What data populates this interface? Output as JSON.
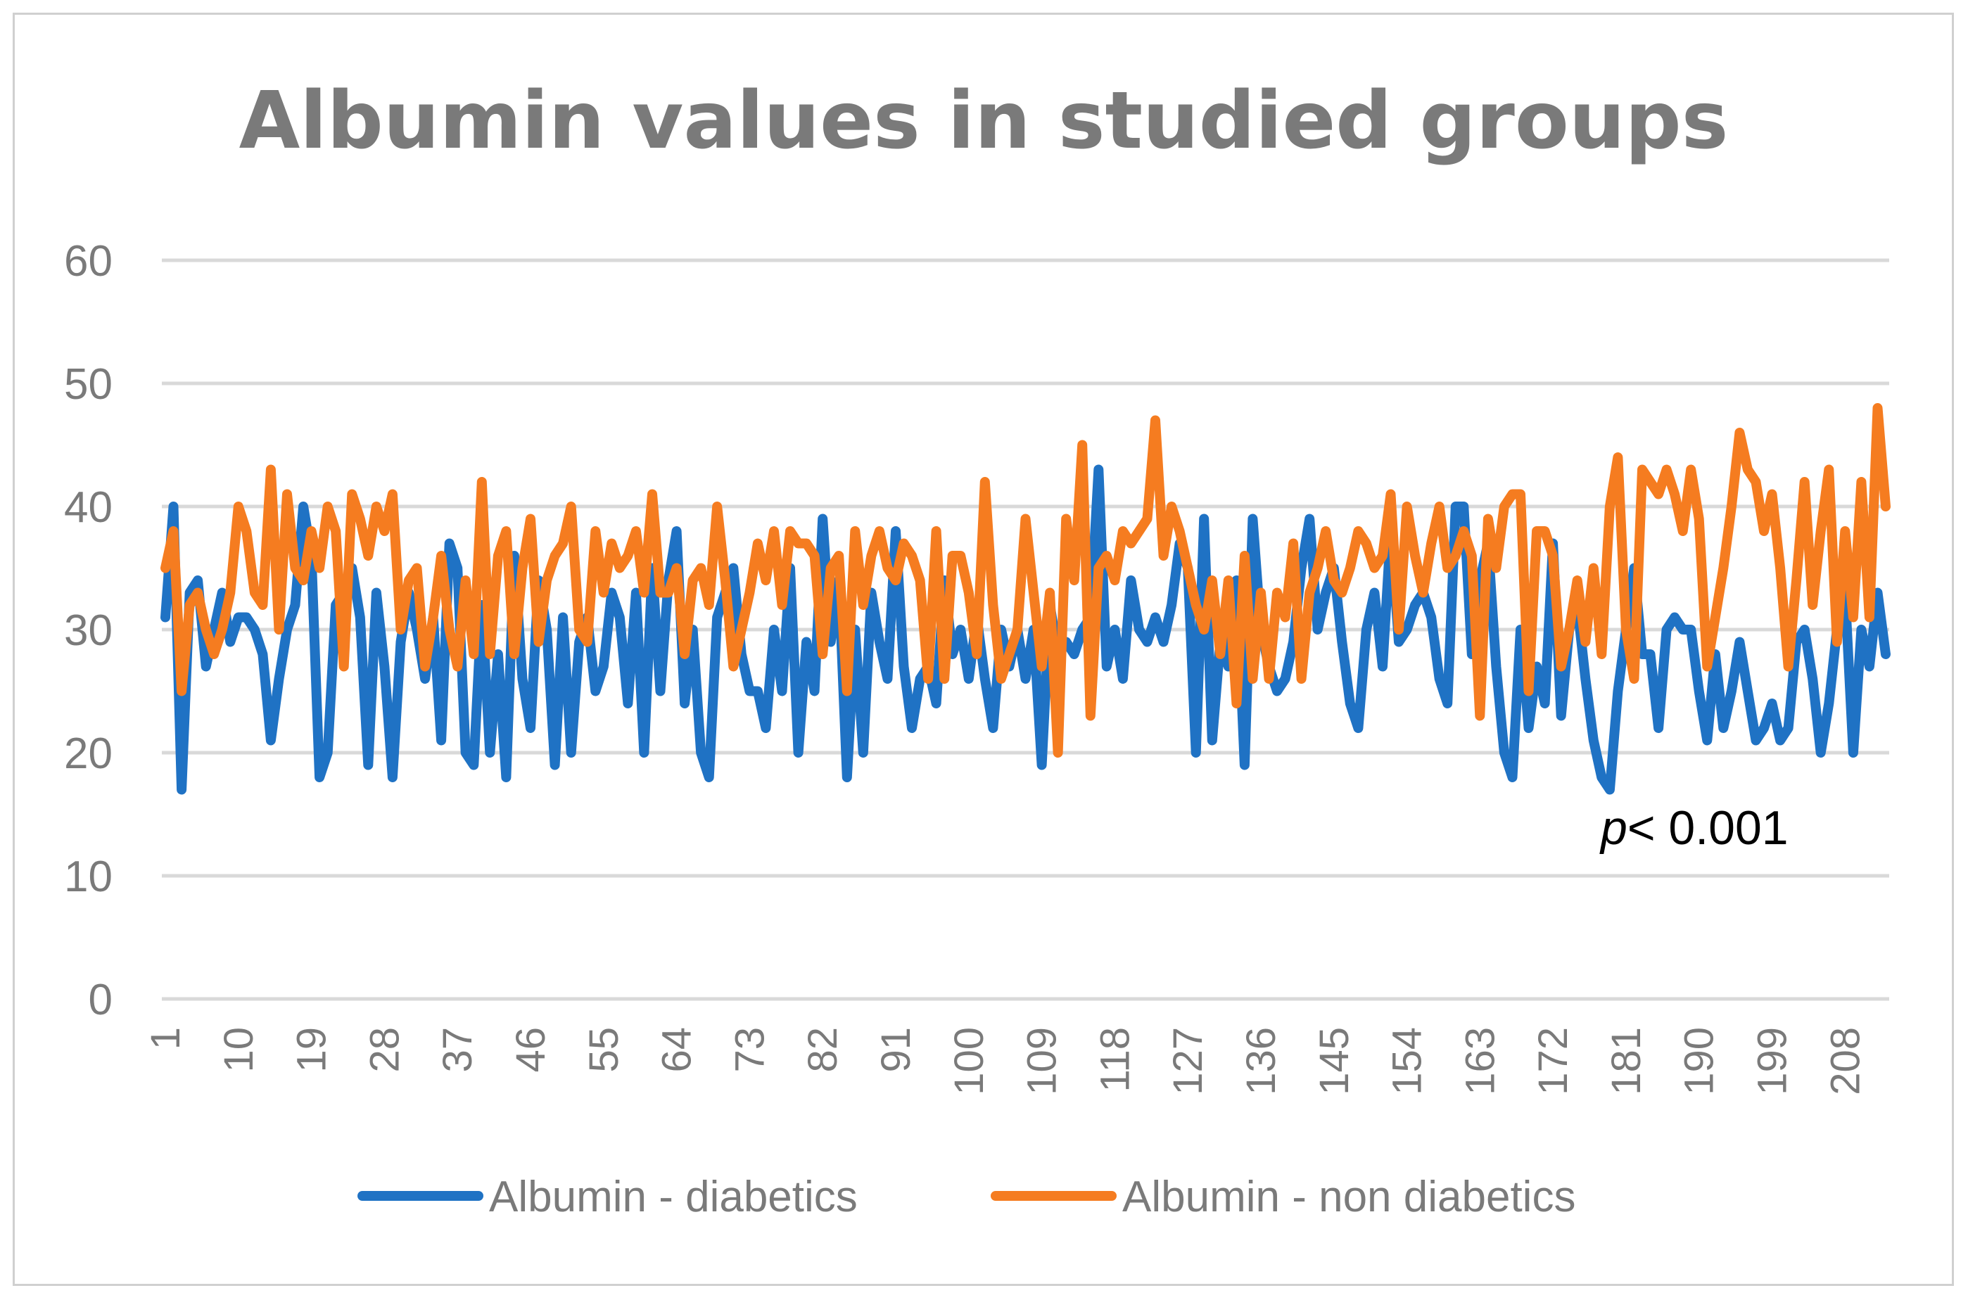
{
  "chart_data": {
    "type": "line",
    "title": "Albumin values in studied groups",
    "xlabel": "",
    "ylabel": "",
    "ylim": [
      0,
      60
    ],
    "yticks": [
      0,
      10,
      20,
      30,
      40,
      50,
      60
    ],
    "x": [
      1,
      2,
      3,
      4,
      5,
      6,
      7,
      8,
      9,
      10,
      11,
      12,
      13,
      14,
      15,
      16,
      17,
      18,
      19,
      20,
      21,
      22,
      23,
      24,
      25,
      26,
      27,
      28,
      29,
      30,
      31,
      32,
      33,
      34,
      35,
      36,
      37,
      38,
      39,
      40,
      41,
      42,
      43,
      44,
      45,
      46,
      47,
      48,
      49,
      50,
      51,
      52,
      53,
      54,
      55,
      56,
      57,
      58,
      59,
      60,
      61,
      62,
      63,
      64,
      65,
      66,
      67,
      68,
      69,
      70,
      71,
      72,
      73,
      74,
      75,
      76,
      77,
      78,
      79,
      80,
      81,
      82,
      83,
      84,
      85,
      86,
      87,
      88,
      89,
      90,
      91,
      92,
      93,
      94,
      95,
      96,
      97,
      98,
      99,
      100,
      101,
      102,
      103,
      104,
      105,
      106,
      107,
      108,
      109,
      110,
      111,
      112,
      113,
      114,
      115,
      116,
      117,
      118,
      119,
      120,
      121,
      122,
      123,
      124,
      125,
      126,
      127,
      128,
      129,
      130,
      131,
      132,
      133,
      134,
      135,
      136,
      137,
      138,
      139,
      140,
      141,
      142,
      143,
      144,
      145,
      146,
      147,
      148,
      149,
      150,
      151,
      152,
      153,
      154,
      155,
      156,
      157,
      158,
      159,
      160,
      161,
      162,
      163,
      164,
      165,
      166,
      167,
      168,
      169,
      170,
      171,
      172,
      173,
      174,
      175,
      176,
      177,
      178,
      179,
      180,
      181,
      182,
      183,
      184,
      185,
      186,
      187,
      188,
      189,
      190,
      191,
      192,
      193,
      194,
      195,
      196,
      197,
      198,
      199,
      200,
      201,
      202,
      203,
      204,
      205,
      206,
      207,
      208,
      209,
      210,
      211,
      212,
      213
    ],
    "categories": [
      "1",
      "10",
      "19",
      "28",
      "37",
      "46",
      "55",
      "64",
      "73",
      "82",
      "91",
      "100",
      "109",
      "118",
      "127",
      "136",
      "145",
      "154",
      "163",
      "172",
      "181",
      "190",
      "199",
      "208"
    ],
    "series": [
      {
        "name": "Albumin - diabetics",
        "color": "#1f72c4",
        "values": [
          31,
          40,
          17,
          33,
          34,
          27,
          30,
          33,
          29,
          31,
          31,
          30,
          28,
          21,
          26,
          30,
          32,
          40,
          36,
          18,
          20,
          32,
          33,
          35,
          31,
          19,
          33,
          27,
          18,
          29,
          33,
          30,
          26,
          31,
          21,
          37,
          35,
          20,
          19,
          32,
          20,
          28,
          18,
          36,
          26,
          22,
          34,
          30,
          19,
          31,
          20,
          29,
          31,
          25,
          27,
          33,
          31,
          24,
          33,
          20,
          35,
          25,
          34,
          38,
          24,
          30,
          20,
          18,
          31,
          33,
          35,
          28,
          25,
          25,
          22,
          30,
          25,
          35,
          20,
          29,
          25,
          39,
          29,
          34,
          18,
          30,
          20,
          33,
          29,
          26,
          38,
          27,
          22,
          26,
          27,
          24,
          34,
          28,
          30,
          26,
          31,
          26,
          22,
          30,
          27,
          30,
          26,
          30,
          19,
          32,
          28,
          29,
          28,
          30,
          31,
          43,
          27,
          30,
          26,
          34,
          30,
          29,
          31,
          29,
          32,
          37,
          35,
          20,
          39,
          21,
          29,
          27,
          34,
          19,
          39,
          30,
          27,
          25,
          26,
          29,
          35,
          39,
          30,
          33,
          35,
          29,
          24,
          22,
          30,
          33,
          27,
          38,
          29,
          30,
          32,
          33,
          31,
          26,
          24,
          40,
          40,
          28,
          34,
          37,
          27,
          20,
          18,
          30,
          22,
          27,
          24,
          37,
          23,
          30,
          32,
          26,
          21,
          18,
          17,
          25,
          30,
          35,
          28,
          28,
          22,
          30,
          31,
          30,
          30,
          25,
          21,
          28,
          22,
          25,
          29,
          25,
          21,
          22,
          24,
          21,
          22,
          29,
          30,
          26,
          20,
          24,
          30,
          33,
          20,
          30,
          27,
          33,
          28
        ],
        "spread_note": "values approximate"
      },
      {
        "name": "Albumin - non diabetics",
        "color": "#f57c20",
        "values": [
          35,
          38,
          25,
          32,
          33,
          30,
          28,
          30,
          33,
          40,
          38,
          33,
          32,
          43,
          30,
          41,
          35,
          34,
          38,
          35,
          40,
          38,
          27,
          41,
          39,
          36,
          40,
          38,
          41,
          30,
          34,
          35,
          27,
          31,
          36,
          30,
          27,
          34,
          28,
          42,
          28,
          36,
          38,
          28,
          35,
          39,
          29,
          34,
          36,
          37,
          40,
          30,
          29,
          38,
          33,
          37,
          35,
          36,
          38,
          33,
          41,
          33,
          33,
          35,
          28,
          34,
          35,
          32,
          40,
          34,
          27,
          30,
          33,
          37,
          34,
          38,
          32,
          38,
          37,
          37,
          36,
          28,
          35,
          36,
          25,
          38,
          32,
          36,
          38,
          35,
          34,
          37,
          36,
          34,
          26,
          38,
          26,
          36,
          36,
          33,
          28,
          42,
          32,
          26,
          28,
          30,
          39,
          33,
          27,
          33,
          20,
          39,
          34,
          45,
          23,
          35,
          36,
          34,
          38,
          37,
          38,
          39,
          47,
          36,
          40,
          38,
          35,
          32,
          30,
          34,
          28,
          34,
          24,
          36,
          26,
          33,
          26,
          33,
          31,
          37,
          26,
          33,
          35,
          38,
          34,
          33,
          35,
          38,
          37,
          35,
          36,
          41,
          30,
          40,
          36,
          33,
          37,
          40,
          35,
          36,
          38,
          36,
          23,
          39,
          35,
          40,
          41,
          41,
          25,
          38,
          38,
          36,
          27,
          30,
          34,
          29,
          35,
          28,
          40,
          44,
          30,
          26,
          43,
          42,
          41,
          43,
          41,
          38,
          43,
          39,
          27,
          31,
          35,
          40,
          46,
          43,
          42,
          38,
          41,
          35,
          27,
          34,
          42,
          32,
          38,
          43,
          29,
          38,
          31,
          42,
          31,
          48,
          40
        ],
        "spread_note": "values approximate"
      }
    ],
    "legend": {
      "position": "bottom",
      "entries": [
        "Albumin - diabetics",
        "Albumin - non diabetics"
      ]
    },
    "annotation": {
      "italic": "p",
      "rest": "< 0.001"
    },
    "grid": true,
    "gridline_color": "#d9d9d9"
  }
}
